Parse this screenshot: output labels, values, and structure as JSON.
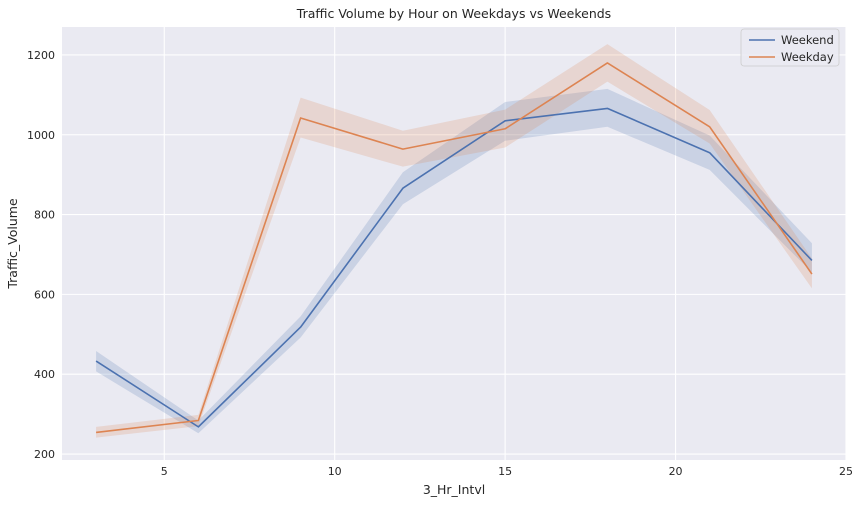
{
  "chart_data": {
    "type": "line",
    "title": "Traffic Volume by Hour on Weekdays vs Weekends",
    "xlabel": "3_Hr_Intvl",
    "ylabel": "Traffic_Volume",
    "x": [
      3,
      6,
      9,
      12,
      15,
      18,
      21,
      24
    ],
    "xlim": [
      2,
      25
    ],
    "ylim": [
      185,
      1270
    ],
    "xticks": [
      5,
      10,
      15,
      20,
      25
    ],
    "yticks": [
      200,
      400,
      600,
      800,
      1000,
      1200
    ],
    "grid": true,
    "legend": "top-right",
    "series": [
      {
        "name": "Weekend",
        "color": "#4c72b0",
        "values": [
          433,
          268,
          518,
          866,
          1035,
          1066,
          955,
          685
        ],
        "ci_low": [
          407,
          252,
          492,
          826,
          985,
          1020,
          912,
          655
        ],
        "ci_high": [
          458,
          284,
          545,
          906,
          1082,
          1115,
          998,
          728
        ]
      },
      {
        "name": "Weekday",
        "color": "#dd8452",
        "values": [
          254,
          284,
          1042,
          964,
          1015,
          1180,
          1020,
          651
        ],
        "ci_low": [
          241,
          270,
          993,
          920,
          968,
          1133,
          978,
          615
        ],
        "ci_high": [
          268,
          298,
          1093,
          1010,
          1063,
          1227,
          1062,
          690
        ]
      }
    ]
  }
}
